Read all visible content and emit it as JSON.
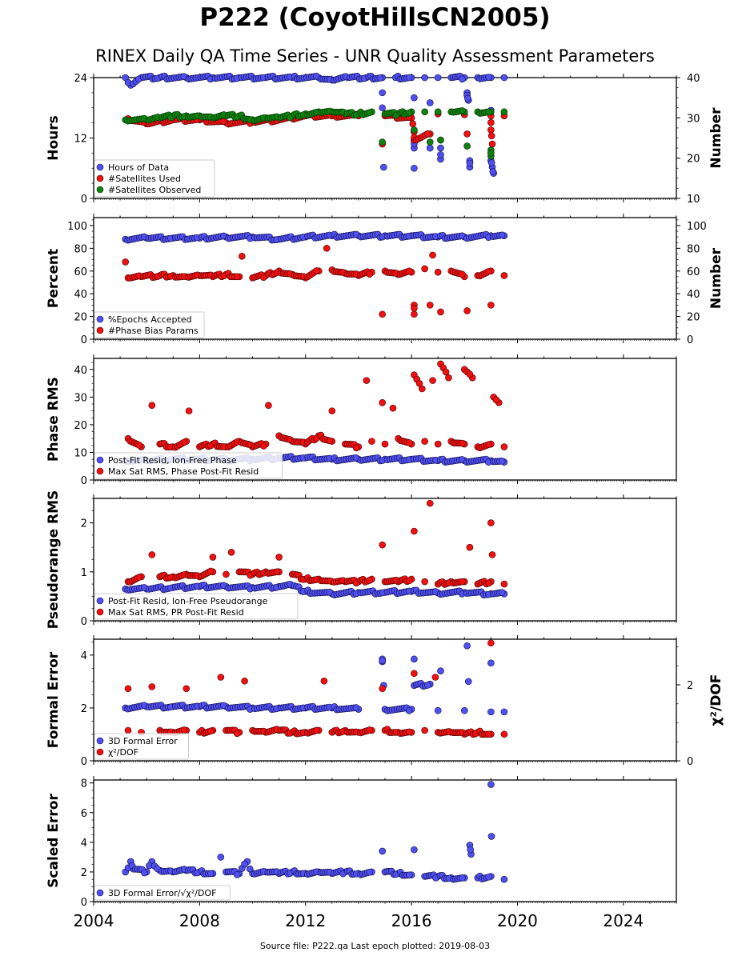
{
  "figure": {
    "title": "P222 (CoyotHillsCN2005)",
    "subtitle": "RINEX Daily QA Time Series - UNR Quality Assessment Parameters",
    "footer": "Source file: P222.qa Last epoch plotted: 2019-08-03"
  },
  "colors": {
    "blue": "#5050f0",
    "blue_edge": "#0a0a40",
    "red": "#f01010",
    "red_edge": "#400000",
    "green": "#108010",
    "green_edge": "#003000"
  },
  "chart_data": [
    {
      "type": "scatter",
      "ylabel": "Hours",
      "ylabel_right": "Number",
      "ylim": [
        0,
        24
      ],
      "yticks": [
        0,
        12,
        24
      ],
      "ylim_right": [
        10,
        40
      ],
      "yticks_right": [
        10,
        20,
        30,
        40
      ],
      "xlim": [
        2004,
        2026
      ],
      "xticks": [
        2004,
        2008,
        2012,
        2016,
        2020,
        2024
      ],
      "legend": "lower-left",
      "series": [
        {
          "name": "Hours of Data",
          "axis": "left",
          "color": "blue",
          "x": [
            2005.2,
            2005.4,
            2005.8,
            2006.5,
            2007.5,
            2008.5,
            2009.5,
            2010.5,
            2011.5,
            2012.5,
            2013.0,
            2013.6,
            2014.3,
            2014.9,
            2015.4,
            2016.0,
            2016.5,
            2017.0,
            2017.5,
            2018.0,
            2018.5,
            2019.0,
            2019.5,
            2014.9,
            2014.9,
            2014.95,
            2016.1,
            2016.1,
            2016.1,
            2016.1,
            2016.7,
            2016.7,
            2017.1,
            2017.1,
            2018.1,
            2018.1,
            2018.15,
            2018.2,
            2018.2,
            2019.0,
            2019.0,
            2019.05,
            2019.1
          ],
          "y": [
            24,
            22.5,
            24,
            24,
            24,
            24,
            24,
            24,
            24,
            24,
            23.5,
            24,
            24,
            24,
            24,
            24,
            24,
            24,
            24,
            24,
            24,
            24,
            24,
            21,
            18,
            6.2,
            20,
            11.5,
            10,
            6,
            19,
            10,
            10,
            7.8,
            21,
            20.5,
            19.5,
            6.2,
            7.5,
            17.5,
            7.5,
            6.2,
            5
          ]
        },
        {
          "name": "#Satellites Used",
          "axis": "right",
          "color": "red",
          "x": [
            2005.3,
            2006.0,
            2007.0,
            2008.0,
            2009.0,
            2010.0,
            2011.0,
            2012.0,
            2013.0,
            2014.0,
            2015.0,
            2016.0,
            2017.0,
            2018.0,
            2019.0,
            2019.5,
            2014.9,
            2016.1,
            2016.1,
            2016.7,
            2017.1,
            2018.1,
            2019.0,
            2019.05
          ],
          "y": [
            29.8,
            28.5,
            29.5,
            29.5,
            28.8,
            29.0,
            29.5,
            30.5,
            30.5,
            30.5,
            30.5,
            30.0,
            31.0,
            30.8,
            30.5,
            30.5,
            23.5,
            26.5,
            24.5,
            26.0,
            24.5,
            26.0,
            27.0,
            23.5
          ]
        },
        {
          "name": "#Satellites Observed",
          "axis": "right",
          "color": "green",
          "x": [
            2005.2,
            2006.0,
            2006.5,
            2007.0,
            2007.5,
            2008.0,
            2008.5,
            2009.0,
            2009.5,
            2010.0,
            2010.5,
            2011.0,
            2011.5,
            2012.0,
            2012.5,
            2013.0,
            2013.5,
            2014.0,
            2014.5,
            2015.0,
            2015.5,
            2016.0,
            2016.5,
            2017.0,
            2017.5,
            2018.0,
            2018.5,
            2019.0,
            2019.5,
            2014.9,
            2016.1,
            2016.7,
            2017.1,
            2018.1,
            2019.0,
            2019.0
          ],
          "y": [
            29.5,
            29.5,
            30.0,
            30.5,
            30.5,
            30.5,
            30.0,
            30.5,
            30.5,
            29.5,
            30.0,
            30.0,
            30.5,
            31.0,
            31.5,
            31.5,
            31.0,
            31.0,
            31.5,
            31.0,
            31.0,
            31.5,
            31.5,
            31.5,
            31.5,
            31.5,
            31.5,
            31.5,
            31.5,
            24.0,
            27.0,
            24.0,
            24.5,
            23.0,
            22.0,
            20.5
          ]
        }
      ]
    },
    {
      "type": "scatter",
      "ylabel": "Percent",
      "ylabel_right": "Number",
      "ylim": [
        0,
        107
      ],
      "yticks": [
        0,
        20,
        40,
        60,
        80,
        100
      ],
      "ylim_right": [
        0,
        107
      ],
      "yticks_right": [
        0,
        20,
        40,
        60,
        80,
        100
      ],
      "xlim": [
        2004,
        2026
      ],
      "xticks": [
        2004,
        2008,
        2012,
        2016,
        2020,
        2024
      ],
      "legend": "lower-left",
      "series": [
        {
          "name": "%Epochs Accepted",
          "axis": "left",
          "color": "blue",
          "x": [
            2005.2,
            2006.0,
            2007.0,
            2008.0,
            2009.0,
            2010.0,
            2011.0,
            2012.0,
            2013.0,
            2014.0,
            2015.0,
            2016.0,
            2017.0,
            2018.0,
            2019.0,
            2019.5
          ],
          "y": [
            88,
            89,
            89,
            89,
            90,
            90,
            88,
            90,
            91,
            91,
            91,
            91,
            90,
            90,
            91,
            91
          ]
        },
        {
          "name": "#Phase Bias Params",
          "axis": "right",
          "color": "red",
          "x": [
            2005.3,
            2005.8,
            2006.5,
            2007.0,
            2007.5,
            2008.0,
            2008.5,
            2009.0,
            2009.5,
            2010.0,
            2010.5,
            2011.0,
            2011.5,
            2012.0,
            2012.5,
            2013.0,
            2013.5,
            2014.0,
            2014.5,
            2015.0,
            2015.5,
            2016.0,
            2016.5,
            2017.0,
            2017.5,
            2018.0,
            2018.5,
            2019.0,
            2019.5,
            2014.9,
            2016.1,
            2016.1,
            2016.7,
            2017.1,
            2018.1,
            2019.0,
            2005.2,
            2009.6,
            2012.8,
            2016.8
          ],
          "y": [
            54,
            55,
            56,
            56,
            55,
            56,
            55,
            57,
            55,
            54,
            56,
            60,
            57,
            54,
            60,
            61,
            58,
            56,
            59,
            60,
            57,
            59,
            62,
            59,
            60,
            55,
            56,
            60,
            56,
            22,
            30,
            22,
            30,
            24,
            25,
            30,
            68,
            73,
            80,
            74
          ]
        }
      ]
    },
    {
      "type": "scatter",
      "ylabel": "Phase RMS",
      "ylim": [
        0,
        44
      ],
      "yticks": [
        0,
        10,
        20,
        30,
        40
      ],
      "xlim": [
        2004,
        2026
      ],
      "xticks": [
        2004,
        2008,
        2012,
        2016,
        2020,
        2024
      ],
      "legend": "lower-left",
      "series": [
        {
          "name": "Post-Fit Resid, Ion-Free Phase",
          "axis": "left",
          "color": "blue",
          "x": [
            2005.2,
            2006.0,
            2007.0,
            2008.0,
            2009.0,
            2010.0,
            2011.0,
            2012.0,
            2013.0,
            2014.0,
            2015.0,
            2016.0,
            2017.0,
            2018.0,
            2019.0,
            2019.5
          ],
          "y": [
            7.0,
            7.0,
            7.5,
            7.5,
            7.5,
            7.5,
            8.0,
            8.0,
            7.5,
            7.5,
            7.5,
            7.5,
            7.0,
            7.0,
            7.0,
            6.5
          ]
        },
        {
          "name": "Max Sat RMS, Phase Post-Fit Resid",
          "axis": "left",
          "color": "red",
          "x": [
            2005.3,
            2005.8,
            2006.5,
            2007.0,
            2007.5,
            2008.0,
            2008.5,
            2009.0,
            2009.5,
            2010.0,
            2010.5,
            2011.0,
            2011.5,
            2012.0,
            2012.5,
            2013.0,
            2013.5,
            2014.0,
            2014.5,
            2015.0,
            2015.5,
            2016.0,
            2016.5,
            2017.0,
            2017.5,
            2018.0,
            2018.5,
            2019.0,
            2019.5,
            2006.2,
            2007.6,
            2010.6,
            2013.0,
            2014.3,
            2014.9,
            2015.3,
            2016.1,
            2016.4,
            2016.8,
            2017.1,
            2017.4,
            2018.0,
            2018.3,
            2019.1,
            2019.3
          ],
          "y": [
            15,
            12,
            13,
            12,
            14,
            12,
            13,
            12,
            14,
            12,
            13,
            16,
            14,
            13,
            16,
            14,
            13,
            12,
            14,
            13,
            15,
            13,
            14,
            13,
            14,
            13,
            12,
            13,
            12,
            27,
            25,
            27,
            25,
            36,
            28,
            26,
            38,
            33,
            36,
            42,
            37,
            40,
            37,
            30,
            28
          ]
        }
      ]
    },
    {
      "type": "scatter",
      "ylabel": "Pseudorange RMS",
      "ylim": [
        0,
        2.5
      ],
      "yticks": [
        0,
        1,
        2
      ],
      "xlim": [
        2004,
        2026
      ],
      "xticks": [
        2004,
        2008,
        2012,
        2016,
        2020,
        2024
      ],
      "legend": "lower-left",
      "series": [
        {
          "name": "Post-Fit Resid, Ion-Free Pseudorange",
          "axis": "left",
          "color": "blue",
          "x": [
            2005.2,
            2006.0,
            2007.0,
            2008.0,
            2009.0,
            2010.0,
            2011.0,
            2011.5,
            2012.0,
            2013.0,
            2014.0,
            2015.0,
            2016.0,
            2017.0,
            2018.0,
            2019.0,
            2019.5
          ],
          "y": [
            0.65,
            0.65,
            0.68,
            0.7,
            0.7,
            0.68,
            0.7,
            0.72,
            0.6,
            0.55,
            0.58,
            0.58,
            0.6,
            0.57,
            0.58,
            0.55,
            0.55
          ]
        },
        {
          "name": "Max Sat RMS, PR Post-Fit Resid",
          "axis": "left",
          "color": "red",
          "x": [
            2005.3,
            2005.8,
            2006.5,
            2007.0,
            2007.5,
            2008.0,
            2008.5,
            2009.0,
            2009.5,
            2010.0,
            2010.5,
            2011.0,
            2011.5,
            2012.0,
            2012.5,
            2013.0,
            2013.5,
            2014.0,
            2014.5,
            2015.0,
            2015.5,
            2016.0,
            2016.5,
            2017.0,
            2017.5,
            2018.0,
            2018.5,
            2019.0,
            2019.5,
            2006.2,
            2008.5,
            2009.2,
            2011.0,
            2014.9,
            2016.1,
            2016.7,
            2018.2,
            2019.0,
            2019.05
          ],
          "y": [
            0.8,
            0.9,
            0.9,
            0.9,
            0.95,
            0.9,
            1.0,
            0.95,
            1.0,
            0.95,
            1.0,
            1.0,
            0.95,
            0.85,
            0.85,
            0.8,
            0.8,
            0.8,
            0.85,
            0.8,
            0.8,
            0.85,
            0.8,
            0.75,
            0.8,
            0.8,
            0.75,
            0.8,
            0.75,
            1.35,
            1.3,
            1.4,
            1.3,
            1.55,
            1.83,
            2.4,
            1.5,
            2.0,
            1.35
          ]
        }
      ]
    },
    {
      "type": "scatter",
      "ylabel": "Formal Error",
      "ylabel_right": "χ²/DOF",
      "ylim": [
        0,
        4.6
      ],
      "yticks": [
        0,
        2,
        4
      ],
      "ylim_right": [
        0,
        3.2
      ],
      "yticks_right": [
        0,
        2
      ],
      "xlim": [
        2004,
        2026
      ],
      "xticks": [
        2004,
        2008,
        2012,
        2016,
        2020,
        2024
      ],
      "legend": "lower-left",
      "series": [
        {
          "name": "3D Formal Error",
          "axis": "left",
          "color": "blue",
          "x": [
            2005.2,
            2006.0,
            2007.0,
            2008.0,
            2009.0,
            2010.0,
            2011.0,
            2012.0,
            2013.0,
            2014.0,
            2015.0,
            2016.0,
            2017.0,
            2018.0,
            2019.0,
            2019.5,
            2014.9,
            2014.9,
            2014.95,
            2016.1,
            2016.1,
            2016.7,
            2017.1,
            2018.1,
            2018.15,
            2019.0
          ],
          "y": [
            2.0,
            2.05,
            2.05,
            2.05,
            2.05,
            2.0,
            2.0,
            2.0,
            2.0,
            1.95,
            1.95,
            1.95,
            1.9,
            1.9,
            1.85,
            1.85,
            3.85,
            3.75,
            2.85,
            3.85,
            2.85,
            2.9,
            3.4,
            4.35,
            3.0,
            3.7
          ]
        },
        {
          "name": "χ²/DOF",
          "axis": "right",
          "color": "red",
          "x": [
            2005.3,
            2005.8,
            2006.5,
            2007.0,
            2007.5,
            2008.0,
            2008.5,
            2009.0,
            2009.5,
            2010.0,
            2010.5,
            2011.0,
            2011.5,
            2012.0,
            2012.5,
            2013.0,
            2013.5,
            2014.0,
            2014.5,
            2015.0,
            2015.5,
            2016.0,
            2016.5,
            2017.0,
            2017.5,
            2018.0,
            2018.5,
            2019.0,
            2019.5,
            2005.3,
            2006.2,
            2007.5,
            2008.8,
            2009.7,
            2012.7,
            2014.9,
            2016.1,
            2016.9,
            2019.0
          ],
          "y": [
            0.8,
            0.75,
            0.8,
            0.75,
            0.8,
            0.75,
            0.8,
            0.8,
            0.75,
            0.8,
            0.75,
            0.8,
            0.75,
            0.75,
            0.8,
            0.75,
            0.8,
            0.75,
            0.8,
            0.8,
            0.75,
            0.75,
            0.8,
            0.75,
            0.75,
            0.7,
            0.75,
            0.7,
            0.7,
            1.9,
            1.95,
            1.9,
            2.2,
            2.1,
            2.1,
            1.9,
            2.3,
            2.2,
            3.1
          ]
        }
      ]
    },
    {
      "type": "scatter",
      "ylabel": "Scaled Error",
      "ylim": [
        0,
        8.2
      ],
      "yticks": [
        0,
        2,
        4,
        6,
        8
      ],
      "xlim": [
        2004,
        2026
      ],
      "xticks": [
        2004,
        2008,
        2012,
        2016,
        2020,
        2024
      ],
      "xticklabels": [
        "2004",
        "2008",
        "2012",
        "2016",
        "2020",
        "2024"
      ],
      "legend": "lower-left",
      "series": [
        {
          "name": "3D Formal Error/√χ²/DOF",
          "axis": "left",
          "color": "blue",
          "x": [
            2005.2,
            2005.5,
            2006.0,
            2006.5,
            2007.0,
            2007.5,
            2008.0,
            2008.5,
            2009.0,
            2009.5,
            2010.0,
            2010.5,
            2011.0,
            2011.5,
            2012.0,
            2012.5,
            2013.0,
            2013.5,
            2014.0,
            2014.5,
            2015.0,
            2015.5,
            2016.0,
            2016.5,
            2017.0,
            2017.5,
            2018.0,
            2018.5,
            2019.0,
            2019.5,
            2005.4,
            2006.2,
            2008.8,
            2009.8,
            2014.9,
            2016.1,
            2018.2,
            2018.25,
            2019.0,
            2019.02
          ],
          "y": [
            2.0,
            2.2,
            2.0,
            2.1,
            2.0,
            2.1,
            2.0,
            1.9,
            2.0,
            1.9,
            1.9,
            2.0,
            1.9,
            2.0,
            1.9,
            2.0,
            1.9,
            2.0,
            1.9,
            2.0,
            2.0,
            1.9,
            1.8,
            1.7,
            1.7,
            1.6,
            1.6,
            1.6,
            1.7,
            1.5,
            2.7,
            2.7,
            3.0,
            2.7,
            3.4,
            3.5,
            3.8,
            3.2,
            7.9,
            4.4
          ]
        }
      ]
    }
  ]
}
